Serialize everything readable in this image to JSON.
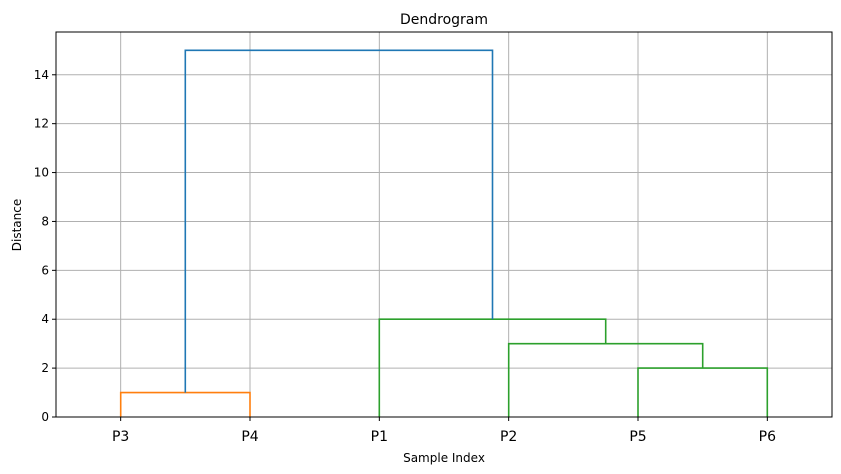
{
  "chart_data": {
    "type": "dendrogram",
    "title": "Dendrogram",
    "xlabel": "Sample Index",
    "ylabel": "Distance",
    "ylim": [
      0,
      15.75
    ],
    "yticks": [
      0,
      2,
      4,
      6,
      8,
      10,
      12,
      14
    ],
    "grid": true,
    "leaves": [
      "P3",
      "P4",
      "P1",
      "P2",
      "P5",
      "P6"
    ],
    "links": [
      {
        "x": [
          0,
          0,
          1,
          1
        ],
        "y": [
          0,
          1,
          1,
          0
        ],
        "color": "#ff7f0e"
      },
      {
        "x": [
          4,
          4,
          5,
          5
        ],
        "y": [
          0,
          2,
          2,
          0
        ],
        "color": "#2ca02c"
      },
      {
        "x": [
          3,
          3,
          4.5,
          4.5
        ],
        "y": [
          0,
          3,
          3,
          2
        ],
        "color": "#2ca02c"
      },
      {
        "x": [
          2,
          2,
          3.75,
          3.75
        ],
        "y": [
          0,
          4,
          4,
          3
        ],
        "color": "#2ca02c"
      },
      {
        "x": [
          0.5,
          0.5,
          2.875,
          2.875
        ],
        "y": [
          1,
          15,
          15,
          4
        ],
        "color": "#1f77b4"
      }
    ]
  }
}
